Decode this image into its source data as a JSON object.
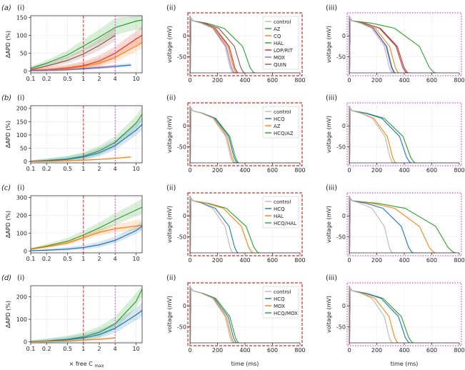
{
  "figure": {
    "rows": [
      {
        "label": "(a)",
        "panels": [
          "(i)",
          "(ii)",
          "(iii)"
        ]
      },
      {
        "label": "(b)",
        "panels": [
          "(i)",
          "(ii)",
          "(iii)"
        ]
      },
      {
        "label": "(c)",
        "panels": [
          "(i)",
          "(ii)",
          "(iii)"
        ]
      },
      {
        "label": "(d)",
        "panels": [
          "(i)",
          "(ii)",
          "(iii)"
        ]
      }
    ],
    "xlabel_dose": "× free C",
    "xlabel_dose_sub": "max",
    "xlabel_time": "time (ms)",
    "ylabel_apd": "ΔAPD (%)",
    "ylabel_voltage": "voltage (mV)"
  },
  "colors": {
    "control": "#b8b8b8",
    "AZ": "#2ca02c",
    "CQ": "#ff7f0e",
    "HAL": "#2ca02c",
    "LOP/RIT": "#d62728",
    "MOX": "#9467bd",
    "QUIN": "#8c564b",
    "HCQ": "#1f77b4",
    "combo": "#2ca02c",
    "red_dash": "#d62728",
    "magenta_dot": "#e040e0"
  },
  "chart_data": [
    {
      "type": "line",
      "row": "a",
      "panel": "(i)",
      "xscale": "log",
      "xlim": [
        0.1,
        13
      ],
      "ylim": [
        -5,
        155
      ],
      "xticks": [
        "0.1",
        "0.2",
        "0.5",
        "1",
        "2",
        "4",
        "10"
      ],
      "xtick_vals": [
        0.1,
        0.2,
        0.5,
        1,
        2,
        4,
        10
      ],
      "yticks": [
        0,
        50,
        100,
        150
      ],
      "vlines": [
        {
          "x": 1,
          "style": "red-dashed"
        },
        {
          "x": 4,
          "style": "magenta-dashed"
        }
      ],
      "series": [
        {
          "name": "AZ",
          "color": "#2ca02c",
          "x": [
            0.1,
            0.2,
            0.5,
            1,
            2,
            4,
            10,
            13
          ],
          "y": [
            8,
            22,
            45,
            70,
            95,
            122,
            140,
            143
          ],
          "band": 25
        },
        {
          "name": "QUIN",
          "color": "#8c564b",
          "x": [
            0.1,
            0.2,
            0.5,
            1,
            2,
            4
          ],
          "y": [
            4,
            14,
            30,
            48,
            72,
            100
          ],
          "band": 15
        },
        {
          "name": "LOP/RIT",
          "color": "#d62728",
          "x": [
            0.1,
            0.2,
            0.5,
            1,
            2,
            4,
            10,
            13
          ],
          "y": [
            2,
            4,
            9,
            15,
            28,
            50,
            90,
            100
          ],
          "band": 18
        },
        {
          "name": "CQ",
          "color": "#ff7f0e",
          "x": [
            0.1,
            0.2,
            0.5,
            1,
            2,
            4,
            10,
            13
          ],
          "y": [
            1,
            3,
            7,
            13,
            22,
            38,
            70,
            80
          ],
          "band": 16
        },
        {
          "name": "HCQ",
          "color": "#1f77b4",
          "x": [
            0.1,
            0.2,
            0.5,
            1,
            2,
            4,
            8
          ],
          "y": [
            1,
            2,
            4,
            7,
            10,
            13,
            17
          ],
          "band": 4
        },
        {
          "name": "MOX",
          "color": "#9467bd",
          "x": [
            0.1,
            0.2,
            0.5,
            1,
            2,
            4
          ],
          "y": [
            1,
            2,
            4,
            6,
            9,
            13
          ],
          "band": 3
        }
      ]
    },
    {
      "type": "line",
      "row": "a",
      "panel": "(ii)",
      "border": "red-dashed",
      "xlim": [
        0,
        800
      ],
      "ylim": [
        -88,
        48
      ],
      "xticks": [
        0,
        200,
        400,
        600,
        800
      ],
      "yticks": [
        0,
        -50
      ],
      "legend": [
        "control",
        "AZ",
        "CQ",
        "HAL",
        "LOP/RIT",
        "MOX",
        "QUIN"
      ],
      "series": [
        {
          "name": "control",
          "color": "#b8b8b8",
          "apd": 300
        },
        {
          "name": "MOX",
          "color": "#9467bd",
          "apd": 310
        },
        {
          "name": "CQ",
          "color": "#ff7f0e",
          "apd": 325
        },
        {
          "name": "LOP/RIT",
          "color": "#d62728",
          "apd": 335
        },
        {
          "name": "QUIN",
          "color": "#8c564b",
          "apd": 380
        },
        {
          "name": "AZ",
          "color": "#2ca02c",
          "apd": 450
        }
      ]
    },
    {
      "type": "line",
      "row": "a",
      "panel": "(iii)",
      "border": "magenta-dotted",
      "xlim": [
        0,
        800
      ],
      "ylim": [
        -88,
        48
      ],
      "xticks": [
        0,
        200,
        400,
        600,
        800
      ],
      "yticks": [
        0,
        -50
      ],
      "series": [
        {
          "name": "control",
          "color": "#b8b8b8",
          "apd": 300
        },
        {
          "name": "MOX",
          "color": "#9467bd",
          "apd": 315
        },
        {
          "name": "HCQ",
          "color": "#1f77b4",
          "apd": 320
        },
        {
          "name": "CQ",
          "color": "#ff7f0e",
          "apd": 345
        },
        {
          "name": "QUIN",
          "color": "#8c564b",
          "apd": 400
        },
        {
          "name": "LOP/RIT",
          "color": "#d62728",
          "apd": 410
        },
        {
          "name": "AZ",
          "color": "#2ca02c",
          "apd": 600
        }
      ]
    },
    {
      "type": "line",
      "row": "b",
      "panel": "(i)",
      "xscale": "log",
      "xlim": [
        0.1,
        13
      ],
      "ylim": [
        -5,
        210
      ],
      "xticks": [
        "0.1",
        "0.2",
        "0.5",
        "1",
        "2",
        "4",
        "10"
      ],
      "xtick_vals": [
        0.1,
        0.2,
        0.5,
        1,
        2,
        4,
        10
      ],
      "yticks": [
        0,
        50,
        100,
        150,
        200
      ],
      "vlines": [
        {
          "x": 1,
          "style": "red-dashed"
        },
        {
          "x": 4,
          "style": "magenta-dashed"
        }
      ],
      "series": [
        {
          "name": "HCQ/AZ",
          "color": "#2ca02c",
          "x": [
            0.1,
            0.2,
            0.5,
            1,
            2,
            4,
            10,
            13
          ],
          "y": [
            1,
            4,
            10,
            20,
            40,
            72,
            145,
            178
          ],
          "band": 22
        },
        {
          "name": "HCQ",
          "color": "#1f77b4",
          "x": [
            0.1,
            0.2,
            0.5,
            1,
            2,
            4,
            10,
            13
          ],
          "y": [
            1,
            3,
            8,
            17,
            33,
            60,
            118,
            140
          ],
          "band": 20
        },
        {
          "name": "AZ",
          "color": "#ff7f0e",
          "x": [
            0.1,
            0.2,
            0.5,
            1,
            2,
            4,
            8
          ],
          "y": [
            0,
            1,
            3,
            5,
            8,
            12,
            17
          ],
          "band": 3
        }
      ]
    },
    {
      "type": "line",
      "row": "b",
      "panel": "(ii)",
      "border": "red-dashed",
      "xlim": [
        0,
        800
      ],
      "ylim": [
        -88,
        48
      ],
      "xticks": [
        0,
        200,
        400,
        600,
        800
      ],
      "yticks": [
        0,
        -50
      ],
      "legend": [
        "control",
        "HCQ",
        "AZ",
        "HCQ/AZ"
      ],
      "series": [
        {
          "name": "control",
          "color": "#b8b8b8",
          "apd": 305
        },
        {
          "name": "AZ",
          "color": "#ff7f0e",
          "apd": 315
        },
        {
          "name": "HCQ",
          "color": "#1f77b4",
          "apd": 330
        },
        {
          "name": "HCQ/AZ",
          "color": "#2ca02c",
          "apd": 340
        }
      ]
    },
    {
      "type": "line",
      "row": "b",
      "panel": "(iii)",
      "border": "magenta-dotted",
      "xlim": [
        0,
        800
      ],
      "ylim": [
        -88,
        48
      ],
      "xticks": [
        0,
        200,
        400,
        600,
        800
      ],
      "yticks": [
        0,
        -50
      ],
      "series": [
        {
          "name": "control",
          "color": "#b8b8b8",
          "apd": 305
        },
        {
          "name": "AZ",
          "color": "#ff7f0e",
          "apd": 325
        },
        {
          "name": "HCQ",
          "color": "#1f77b4",
          "apd": 430
        },
        {
          "name": "HCQ/AZ",
          "color": "#2ca02c",
          "apd": 460
        }
      ]
    },
    {
      "type": "line",
      "row": "c",
      "panel": "(i)",
      "xscale": "log",
      "xlim": [
        0.1,
        13
      ],
      "ylim": [
        -10,
        310
      ],
      "xticks": [
        "0.1",
        "0.2",
        "0.5",
        "1",
        "2",
        "4",
        "10"
      ],
      "xtick_vals": [
        0.1,
        0.2,
        0.5,
        1,
        2,
        4,
        10
      ],
      "yticks": [
        0,
        100,
        200,
        300
      ],
      "vlines": [
        {
          "x": 1,
          "style": "red-dashed"
        },
        {
          "x": 4,
          "style": "magenta-dashed"
        }
      ],
      "series": [
        {
          "name": "HCQ/HAL",
          "color": "#2ca02c",
          "x": [
            0.1,
            0.2,
            0.5,
            1,
            2,
            4,
            10,
            13
          ],
          "y": [
            12,
            28,
            55,
            90,
            130,
            175,
            230,
            245
          ],
          "band": 35
        },
        {
          "name": "HAL",
          "color": "#ff7f0e",
          "x": [
            0.1,
            0.2,
            0.5,
            1,
            2,
            4,
            10,
            13
          ],
          "y": [
            10,
            24,
            45,
            75,
            105,
            125,
            140,
            145
          ],
          "band": 25
        },
        {
          "name": "HCQ",
          "color": "#1f77b4",
          "x": [
            0.1,
            0.2,
            0.5,
            1,
            2,
            4,
            10,
            13
          ],
          "y": [
            2,
            5,
            11,
            20,
            35,
            60,
            115,
            140
          ],
          "band": 20
        }
      ]
    },
    {
      "type": "line",
      "row": "c",
      "panel": "(ii)",
      "border": "red-dashed",
      "xlim": [
        0,
        800
      ],
      "ylim": [
        -88,
        48
      ],
      "xticks": [
        0,
        200,
        400,
        600,
        800
      ],
      "yticks": [
        0,
        -50
      ],
      "legend": [
        "control",
        "HCQ",
        "HAL",
        "HCQ/HAL"
      ],
      "series": [
        {
          "name": "control",
          "color": "#b8b8b8",
          "apd": 300
        },
        {
          "name": "HCQ",
          "color": "#1f77b4",
          "apd": 335
        },
        {
          "name": "HAL",
          "color": "#ff7f0e",
          "apd": 440
        },
        {
          "name": "HCQ/HAL",
          "color": "#2ca02c",
          "apd": 480
        }
      ]
    },
    {
      "type": "line",
      "row": "c",
      "panel": "(iii)",
      "border": "magenta-dotted",
      "xlim": [
        0,
        800
      ],
      "ylim": [
        -88,
        48
      ],
      "xticks": [
        0,
        200,
        400,
        600,
        800
      ],
      "yticks": [
        0,
        -50
      ],
      "series": [
        {
          "name": "control",
          "color": "#b8b8b8",
          "apd": 300
        },
        {
          "name": "HCQ",
          "color": "#1f77b4",
          "apd": 445
        },
        {
          "name": "HAL",
          "color": "#ff7f0e",
          "apd": 600
        },
        {
          "name": "HCQ/HAL",
          "color": "#2ca02c",
          "apd": 740
        }
      ]
    },
    {
      "type": "line",
      "row": "d",
      "panel": "(i)",
      "xscale": "log",
      "xlim": [
        0.1,
        13
      ],
      "ylim": [
        -5,
        250
      ],
      "xticks": [
        "0.1",
        "0.2",
        "0.5",
        "1",
        "2",
        "4",
        "10"
      ],
      "xtick_vals": [
        0.1,
        0.2,
        0.5,
        1,
        2,
        4,
        10
      ],
      "yticks": [
        0,
        100,
        200
      ],
      "vlines": [
        {
          "x": 1,
          "style": "red-dashed"
        },
        {
          "x": 4,
          "style": "magenta-dashed"
        }
      ],
      "series": [
        {
          "name": "HCQ/MOX",
          "color": "#2ca02c",
          "x": [
            0.1,
            0.2,
            0.5,
            1,
            2,
            4,
            10,
            13
          ],
          "y": [
            1,
            4,
            11,
            22,
            42,
            80,
            180,
            235
          ],
          "band": 30
        },
        {
          "name": "HCQ",
          "color": "#1f77b4",
          "x": [
            0.1,
            0.2,
            0.5,
            1,
            2,
            4,
            10,
            13
          ],
          "y": [
            1,
            3,
            9,
            17,
            32,
            60,
            120,
            140
          ],
          "band": 25
        },
        {
          "name": "MOX",
          "color": "#ff7f0e",
          "x": [
            0.1,
            0.2,
            0.5,
            1,
            2,
            4
          ],
          "y": [
            0,
            2,
            4,
            7,
            11,
            17
          ],
          "band": 3
        }
      ]
    },
    {
      "type": "line",
      "row": "d",
      "panel": "(ii)",
      "border": "red-dashed",
      "xlim": [
        0,
        800
      ],
      "ylim": [
        -88,
        48
      ],
      "xticks": [
        0,
        200,
        400,
        600,
        800
      ],
      "yticks": [
        0,
        -50
      ],
      "legend": [
        "control",
        "HCQ",
        "MOX",
        "HCQ/MOX"
      ],
      "series": [
        {
          "name": "control",
          "color": "#b8b8b8",
          "apd": 300
        },
        {
          "name": "MOX",
          "color": "#ff7f0e",
          "apd": 310
        },
        {
          "name": "HCQ",
          "color": "#1f77b4",
          "apd": 325
        },
        {
          "name": "HCQ/MOX",
          "color": "#2ca02c",
          "apd": 340
        }
      ]
    },
    {
      "type": "line",
      "row": "d",
      "panel": "(iii)",
      "border": "magenta-dotted",
      "xlim": [
        0,
        800
      ],
      "ylim": [
        -88,
        48
      ],
      "xticks": [
        0,
        200,
        400,
        600,
        800
      ],
      "yticks": [
        0,
        -50
      ],
      "series": [
        {
          "name": "control",
          "color": "#b8b8b8",
          "apd": 300
        },
        {
          "name": "MOX",
          "color": "#ff7f0e",
          "apd": 340
        },
        {
          "name": "HCQ",
          "color": "#1f77b4",
          "apd": 420
        },
        {
          "name": "HCQ/MOX",
          "color": "#2ca02c",
          "apd": 445
        }
      ]
    }
  ]
}
